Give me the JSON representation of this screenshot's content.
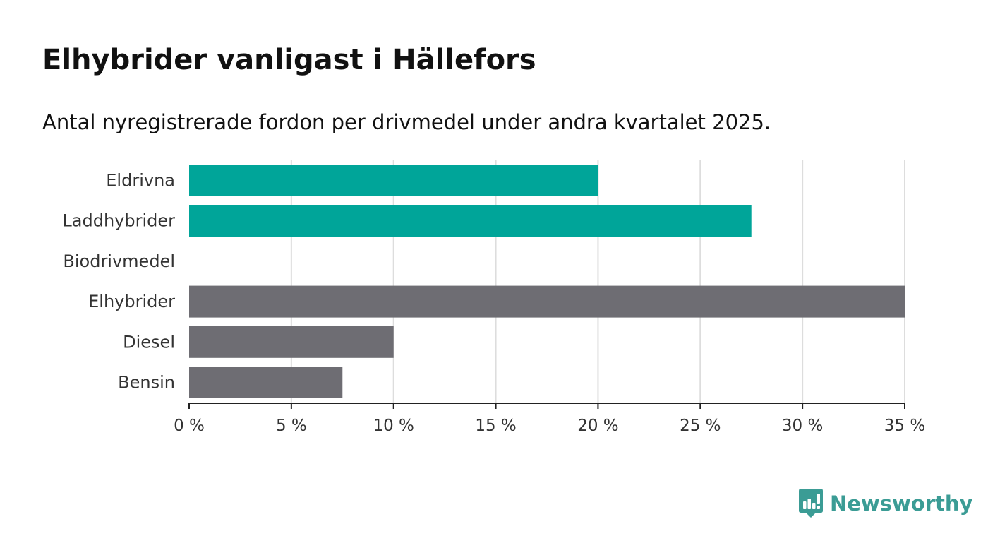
{
  "chart_data": {
    "type": "bar",
    "orientation": "horizontal",
    "title": "Elhybrider vanligast i Hällefors",
    "subtitle": "Antal nyregistrerade fordon per drivmedel under andra kvartalet 2025.",
    "categories": [
      "Eldrivna",
      "Laddhybrider",
      "Biodrivmedel",
      "Elhybrider",
      "Diesel",
      "Bensin"
    ],
    "values": [
      20,
      27.5,
      0,
      35,
      10,
      7.5
    ],
    "bar_colors": [
      "#00a599",
      "#00a599",
      "#00a599",
      "#6e6d73",
      "#6e6d73",
      "#6e6d73"
    ],
    "xlim": [
      0,
      35
    ],
    "xticks": [
      0,
      5,
      10,
      15,
      20,
      25,
      30,
      35
    ],
    "tick_labels": [
      "0 %",
      "5 %",
      "10 %",
      "15 %",
      "20 %",
      "25 %",
      "30 %",
      "35 %"
    ],
    "grid": true
  },
  "brand": {
    "name": "Newsworthy",
    "logo_icon": "bar-chart-speech-bubble-icon",
    "color": "#3b9c95"
  }
}
